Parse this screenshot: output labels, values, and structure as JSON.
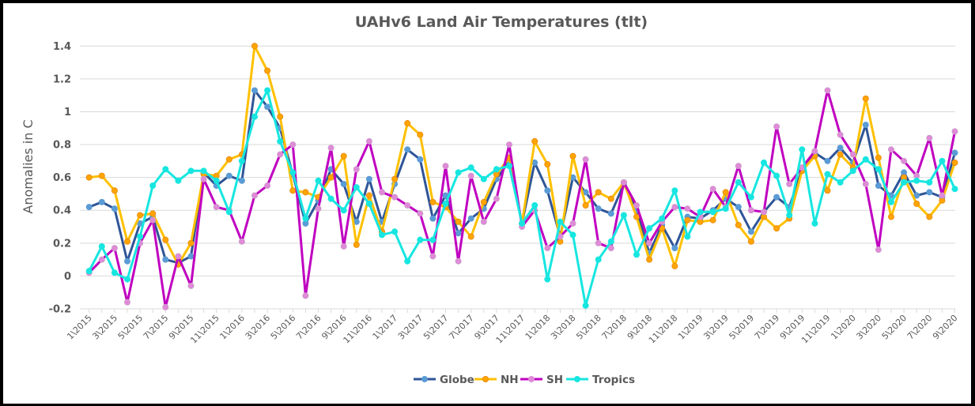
{
  "chart_data": {
    "type": "line",
    "title": "UAHv6 Land Air Temperatures (tlt)",
    "xlabel": "",
    "ylabel": "Anomalies in C",
    "ylim": [
      -0.2,
      1.4
    ],
    "yticks": [
      -0.2,
      0,
      0.2,
      0.4,
      0.6,
      0.8,
      1,
      1.2,
      1.4
    ],
    "ytick_labels": [
      "-0.2",
      "0",
      "0.2",
      "0.4",
      "0.6",
      "0.8",
      "1",
      "1.2",
      "1.4"
    ],
    "grid": true,
    "legend_position": "bottom",
    "x": [
      "1\\2015",
      "2\\2015",
      "3\\2015",
      "4\\2015",
      "5\\2015",
      "6\\2015",
      "7\\2015",
      "8\\2015",
      "9\\2015",
      "10\\2015",
      "11\\2015",
      "12\\2015",
      "1\\2016",
      "2\\2016",
      "3\\2016",
      "4\\2016",
      "5\\2016",
      "6\\2016",
      "7\\2016",
      "8\\2016",
      "9\\2016",
      "10\\2016",
      "11\\2016",
      "12\\2016",
      "1\\2017",
      "2\\2017",
      "3\\2017",
      "4\\2017",
      "5\\2017",
      "6\\2017",
      "7\\2017",
      "8\\2017",
      "9\\2017",
      "10\\2017",
      "11\\2017",
      "12\\2017",
      "1\\2018",
      "2\\2018",
      "3\\2018",
      "4\\2018",
      "5\\2018",
      "6\\2018",
      "7\\2018",
      "8\\2018",
      "9\\2018",
      "10\\2018",
      "11\\2018",
      "12\\2018",
      "1\\2019",
      "2\\2019",
      "3\\2019",
      "4\\2019",
      "5\\2019",
      "6\\2019",
      "7\\2019",
      "8\\2019",
      "9\\2019",
      "10\\2019",
      "11\\2019",
      "12\\2019",
      "1\\2020",
      "2\\2020",
      "3\\2020",
      "4\\2020",
      "5\\2020",
      "6\\2020",
      "7\\2020",
      "8\\2020",
      "9\\2020"
    ],
    "xtick_labels": [
      "1\\2015",
      "3\\2015",
      "5\\2015",
      "7\\2015",
      "9\\2015",
      "11\\2015",
      "1\\2016",
      "3\\2016",
      "5\\2016",
      "7\\2016",
      "9\\2016",
      "11\\2016",
      "1\\2017",
      "3\\2017",
      "5\\2017",
      "7\\2017",
      "9\\2017",
      "11\\2017",
      "1\\2018",
      "3\\2018",
      "5\\2018",
      "7\\2018",
      "9\\2018",
      "11\\2018",
      "1\\2019",
      "3\\2019",
      "5\\2019",
      "7\\2019",
      "9\\2019",
      "11\\2019",
      "1\\2020",
      "3\\2020",
      "5\\2020",
      "7\\2020",
      "9\\2020"
    ],
    "series": [
      {
        "name": "Globe",
        "line_color": "#2f5597",
        "marker_color": "#5b9bd5",
        "values": [
          0.42,
          0.45,
          0.41,
          0.09,
          0.32,
          0.36,
          0.1,
          0.08,
          0.12,
          0.63,
          0.55,
          0.61,
          0.58,
          1.13,
          1.03,
          0.9,
          0.62,
          0.32,
          0.46,
          0.65,
          0.56,
          0.33,
          0.59,
          0.33,
          0.56,
          0.77,
          0.71,
          0.35,
          0.49,
          0.26,
          0.35,
          0.41,
          0.59,
          0.7,
          0.32,
          0.69,
          0.52,
          0.24,
          0.6,
          0.51,
          0.41,
          0.38,
          0.56,
          0.4,
          0.14,
          0.31,
          0.17,
          0.36,
          0.35,
          0.4,
          0.47,
          0.42,
          0.27,
          0.39,
          0.48,
          0.42,
          0.65,
          0.75,
          0.7,
          0.78,
          0.69,
          0.92,
          0.55,
          0.49,
          0.63,
          0.49,
          0.51,
          0.48,
          0.75
        ]
      },
      {
        "name": "NH",
        "line_color": "#ffc000",
        "marker_color": "#ffa500",
        "values": [
          0.6,
          0.61,
          0.52,
          0.21,
          0.37,
          0.38,
          0.22,
          0.07,
          0.2,
          0.62,
          0.61,
          0.71,
          0.74,
          1.4,
          1.25,
          0.97,
          0.52,
          0.51,
          0.48,
          0.6,
          0.73,
          0.19,
          0.49,
          0.27,
          0.59,
          0.93,
          0.86,
          0.45,
          0.42,
          0.33,
          0.24,
          0.45,
          0.62,
          0.72,
          0.32,
          0.82,
          0.68,
          0.21,
          0.73,
          0.43,
          0.51,
          0.47,
          0.57,
          0.36,
          0.1,
          0.29,
          0.06,
          0.34,
          0.33,
          0.34,
          0.51,
          0.31,
          0.21,
          0.36,
          0.29,
          0.35,
          0.64,
          0.73,
          0.52,
          0.74,
          0.66,
          1.08,
          0.72,
          0.36,
          0.6,
          0.44,
          0.36,
          0.46,
          0.69
        ]
      },
      {
        "name": "SH",
        "line_color": "#c000c0",
        "marker_color": "#e08ad8",
        "values": [
          0.02,
          0.1,
          0.17,
          -0.16,
          0.2,
          0.34,
          -0.19,
          0.12,
          -0.06,
          0.59,
          0.42,
          0.4,
          0.21,
          0.49,
          0.55,
          0.74,
          0.8,
          -0.12,
          0.41,
          0.78,
          0.18,
          0.65,
          0.82,
          0.51,
          0.48,
          0.43,
          0.38,
          0.12,
          0.67,
          0.09,
          0.61,
          0.33,
          0.47,
          0.8,
          0.3,
          0.4,
          0.17,
          0.24,
          0.32,
          0.71,
          0.2,
          0.17,
          0.57,
          0.43,
          0.2,
          0.33,
          0.42,
          0.41,
          0.36,
          0.53,
          0.42,
          0.67,
          0.4,
          0.39,
          0.91,
          0.56,
          0.66,
          0.76,
          1.13,
          0.86,
          0.74,
          0.56,
          0.16,
          0.77,
          0.7,
          0.61,
          0.84,
          0.49,
          0.88
        ]
      },
      {
        "name": "Tropics",
        "line_color": "#17e6e0",
        "marker_color": "#17e6e0",
        "values": [
          0.03,
          0.18,
          0.02,
          -0.02,
          0.24,
          0.55,
          0.65,
          0.58,
          0.64,
          0.64,
          0.58,
          0.39,
          0.7,
          0.97,
          1.13,
          0.82,
          0.63,
          0.35,
          0.58,
          0.47,
          0.4,
          0.54,
          0.44,
          0.25,
          0.27,
          0.09,
          0.22,
          0.22,
          0.44,
          0.63,
          0.66,
          0.59,
          0.65,
          0.67,
          0.32,
          0.43,
          -0.02,
          0.33,
          0.25,
          -0.18,
          0.1,
          0.21,
          0.37,
          0.13,
          0.29,
          0.35,
          0.52,
          0.24,
          0.39,
          0.39,
          0.41,
          0.57,
          0.48,
          0.69,
          0.61,
          0.37,
          0.77,
          0.32,
          0.62,
          0.57,
          0.64,
          0.71,
          0.65,
          0.45,
          0.57,
          0.58,
          0.57,
          0.7,
          0.53
        ]
      }
    ]
  }
}
